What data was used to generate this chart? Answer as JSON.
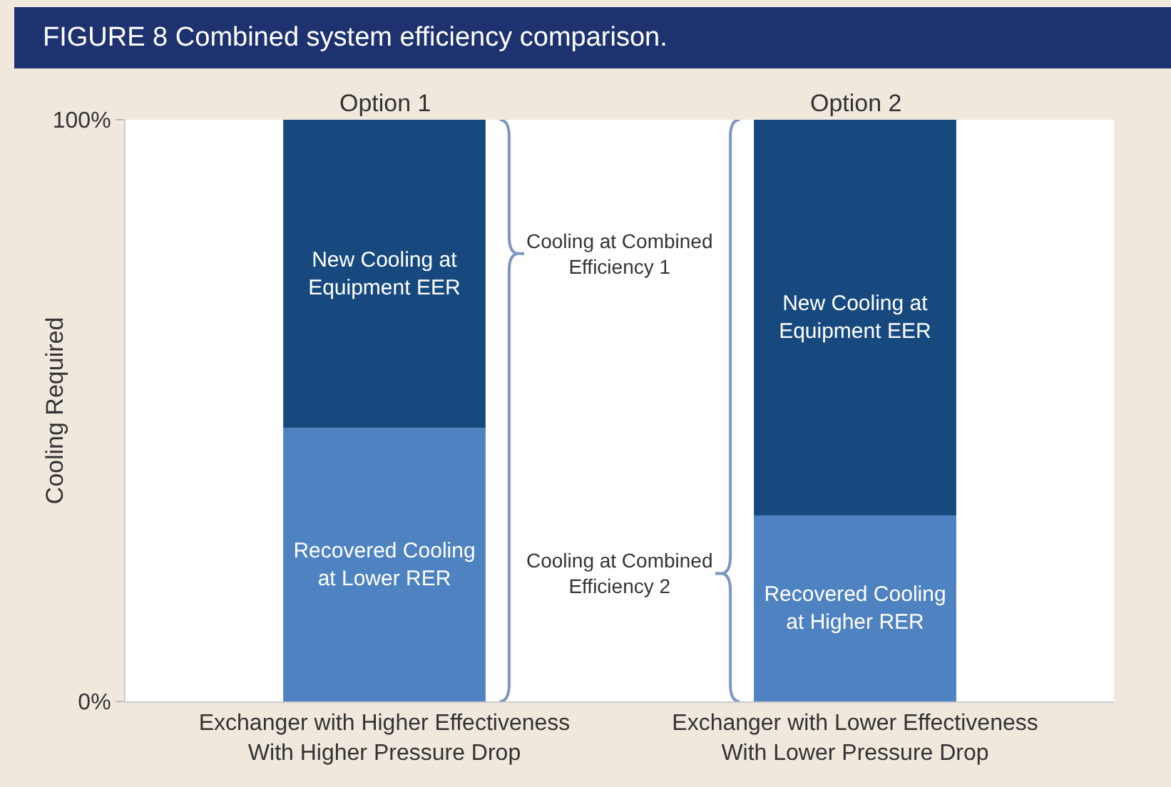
{
  "chart_data": {
    "type": "bar",
    "title": "FIGURE 8  Combined system efficiency comparison.",
    "ylabel": "Cooling Required",
    "categories": [
      "Exchanger with Higher Effectiveness\nWith Higher Pressure Drop",
      "Exchanger with Lower Effectiveness\nWith Lower Pressure Drop"
    ],
    "stacked": true,
    "series": [
      {
        "name": "Recovered Cooling at Lower RER",
        "color": "#4e82c1",
        "values": [
          47,
          null
        ]
      },
      {
        "name": "Recovered Cooling at Higher RER",
        "color": "#4e82c1",
        "values": [
          null,
          32
        ]
      },
      {
        "name": "New Cooling at Equipment EER",
        "color": "#17497f",
        "values": [
          53,
          68
        ]
      }
    ],
    "ylim": [
      0,
      100
    ],
    "yticks": [
      {
        "value": 0,
        "label": "0%"
      },
      {
        "value": 100,
        "label": "100%"
      }
    ],
    "legend": false,
    "annotations": [
      "Option 1",
      "Option 2",
      "Cooling at Combined Efficiency 1",
      "Cooling at Combined Efficiency 2"
    ]
  }
}
